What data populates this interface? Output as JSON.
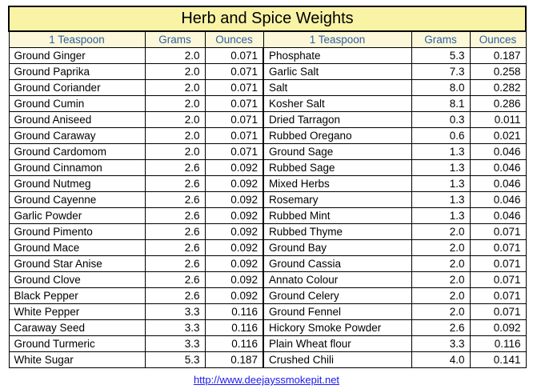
{
  "title": "Herb and Spice Weights",
  "headers": [
    "1 Teaspoon",
    "Grams",
    "Ounces",
    "1 Teaspoon",
    "Grams",
    "Ounces"
  ],
  "left_rows": [
    [
      "Ground Ginger",
      "2.0",
      "0.071"
    ],
    [
      "Ground Paprika",
      "2.0",
      "0.071"
    ],
    [
      "Ground Coriander",
      "2.0",
      "0.071"
    ],
    [
      "Ground Cumin",
      "2.0",
      "0.071"
    ],
    [
      "Ground Aniseed",
      "2.0",
      "0.071"
    ],
    [
      "Ground Caraway",
      "2.0",
      "0.071"
    ],
    [
      "Ground Cardomom",
      "2.0",
      "0.071"
    ],
    [
      "Ground Cinnamon",
      "2.6",
      "0.092"
    ],
    [
      "Ground Nutmeg",
      "2.6",
      "0.092"
    ],
    [
      "Ground Cayenne",
      "2.6",
      "0.092"
    ],
    [
      "Garlic Powder",
      "2.6",
      "0.092"
    ],
    [
      "Ground Pimento",
      "2.6",
      "0.092"
    ],
    [
      "Ground Mace",
      "2.6",
      "0.092"
    ],
    [
      "Ground Star Anise",
      "2.6",
      "0.092"
    ],
    [
      "Ground Clove",
      "2.6",
      "0.092"
    ],
    [
      "Black Pepper",
      "2.6",
      "0.092"
    ],
    [
      "White Pepper",
      "3.3",
      "0.116"
    ],
    [
      "Caraway Seed",
      "3.3",
      "0.116"
    ],
    [
      "Ground Turmeric",
      "3.3",
      "0.116"
    ],
    [
      "White Sugar",
      "5.3",
      "0.187"
    ]
  ],
  "right_rows": [
    [
      "Phosphate",
      "5.3",
      "0.187"
    ],
    [
      "Garlic Salt",
      "7.3",
      "0.258"
    ],
    [
      "Salt",
      "8.0",
      "0.282"
    ],
    [
      "Kosher Salt",
      "8.1",
      "0.286"
    ],
    [
      "Dried Tarragon",
      "0.3",
      "0.011"
    ],
    [
      "Rubbed Oregano",
      "0.6",
      "0.021"
    ],
    [
      "Ground Sage",
      "1.3",
      "0.046"
    ],
    [
      "Rubbed Sage",
      "1.3",
      "0.046"
    ],
    [
      "Mixed Herbs",
      "1.3",
      "0.046"
    ],
    [
      "Rosemary",
      "1.3",
      "0.046"
    ],
    [
      "Rubbed Mint",
      "1.3",
      "0.046"
    ],
    [
      "Rubbed Thyme",
      "2.0",
      "0.071"
    ],
    [
      "Ground Bay",
      "2.0",
      "0.071"
    ],
    [
      "Ground Cassia",
      "2.0",
      "0.071"
    ],
    [
      "Annato Colour",
      "2.0",
      "0.071"
    ],
    [
      "Ground Celery",
      "2.0",
      "0.071"
    ],
    [
      "Ground Fennel",
      "2.0",
      "0.071"
    ],
    [
      "Hickory Smoke Powder",
      "2.6",
      "0.092"
    ],
    [
      "Plain Wheat flour",
      "3.3",
      "0.116"
    ],
    [
      "Crushed Chili",
      "4.0",
      "0.141"
    ]
  ],
  "footer_link": "http://www.deejayssmokepit.net",
  "colors": {
    "title_bg": "#f9f3a6",
    "header_text": "#2f5fa5",
    "link": "#1a1aee"
  }
}
